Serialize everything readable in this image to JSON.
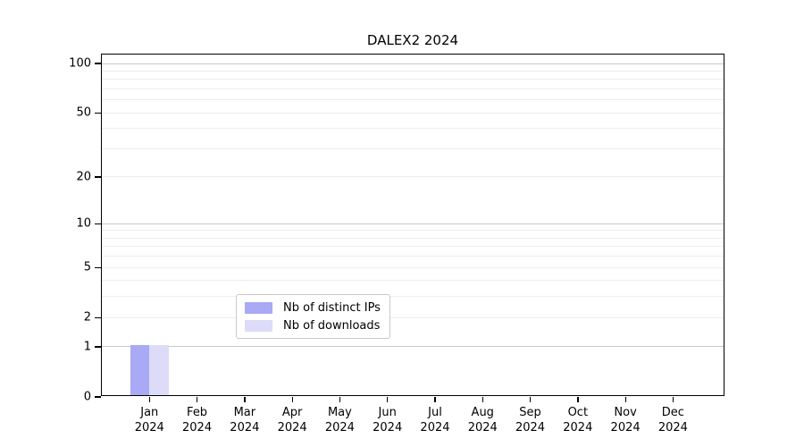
{
  "chart_data": {
    "type": "bar",
    "title": "DALEX2 2024",
    "categories": [
      "Jan 2024",
      "Feb 2024",
      "Mar 2024",
      "Apr 2024",
      "May 2024",
      "Jun 2024",
      "Jul 2024",
      "Aug 2024",
      "Sep 2024",
      "Oct 2024",
      "Nov 2024",
      "Dec 2024"
    ],
    "series": [
      {
        "name": "Nb of distinct IPs",
        "color": "#a9a9f5",
        "values": [
          1,
          0,
          0,
          0,
          0,
          0,
          0,
          0,
          0,
          0,
          0,
          0
        ]
      },
      {
        "name": "Nb of downloads",
        "color": "#dcdcf8",
        "values": [
          1,
          0,
          0,
          0,
          0,
          0,
          0,
          0,
          0,
          0,
          0,
          0
        ]
      }
    ],
    "xlabel": "",
    "ylabel": "",
    "yscale": "log1p",
    "ylim": [
      0,
      113.4
    ],
    "xlim": [
      -1,
      12.1
    ],
    "yticks": [
      0,
      1,
      2,
      5,
      10,
      20,
      50,
      100
    ],
    "grid": {
      "major_values": [
        1,
        10,
        100
      ],
      "minor_values": [
        2,
        3,
        4,
        5,
        6,
        7,
        8,
        9,
        20,
        30,
        40,
        50,
        60,
        70,
        80,
        90
      ]
    },
    "bar_width_units": 0.4,
    "legend_position": "lower center",
    "colors": {
      "grid_major": "#c9c9c9",
      "grid_minor": "#ededed",
      "axis": "#000000",
      "background": "#ffffff"
    }
  }
}
